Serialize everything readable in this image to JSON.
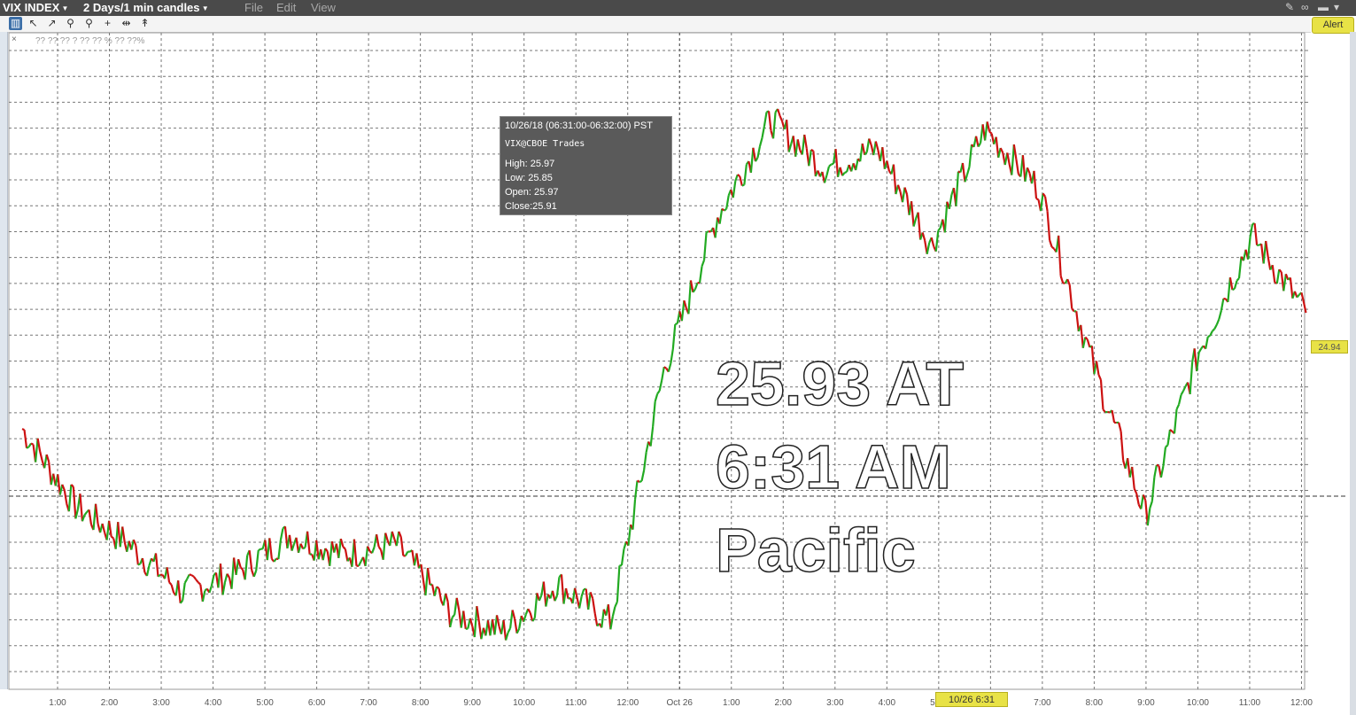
{
  "menu": {
    "symbol": "VIX INDEX",
    "period": "2 Days/1 min candles",
    "file": "File",
    "edit": "Edit",
    "view": "View"
  },
  "toolbar_icons": [
    "chart-type-icon",
    "cursor-icon",
    "draw-icon",
    "zoom-in-icon",
    "zoom-out-icon",
    "crosshair-icon",
    "pan-icon",
    "annotation-icon"
  ],
  "alert_label": "Alert",
  "legend_text": "?? ?? ??   ? ?? ?? % ?? ??%",
  "tooltip": {
    "time": "10/26/18 (06:31:00-06:32:00) PST",
    "series": "VIX@CBOE Trades",
    "high": "High:  25.97",
    "low": "Low:   25.85",
    "open": "Open: 25.97",
    "close": "Close:25.91"
  },
  "overlay": {
    "line1": "25.93 AT",
    "line2": "6:31 AM",
    "line3": "Pacific"
  },
  "x_date_badge": "10/26 6:31",
  "last_price_badge": "24.94",
  "colors": {
    "up": "#22aa22",
    "down": "#cc1111",
    "grid": "#666666",
    "badge": "#e8e246",
    "topbar": "#4a4a4a"
  },
  "chart_data": {
    "type": "line",
    "title": "",
    "instrument": "VIX INDEX",
    "interval": "2 Days/1 min candles",
    "candles_direction_colors": {
      "up": "green",
      "down": "red"
    },
    "x": [
      "1:00",
      "2:00",
      "3:00",
      "4:00",
      "5:00",
      "6:00",
      "7:00",
      "8:00",
      "9:00",
      "10:00",
      "11:00",
      "12:00",
      "Oct 26",
      "1:00",
      "2:00",
      "3:00",
      "4:00",
      "5:00",
      "6:00",
      "7:00",
      "8:00",
      "9:00",
      "10:00",
      "11:00",
      "12:00"
    ],
    "x_ticks": [
      "1:00",
      "2:00",
      "3:00",
      "4:00",
      "5:00",
      "6:00",
      "7:00",
      "8:00",
      "9:00",
      "10:00",
      "11:00",
      "12:00",
      "Oct 26",
      "1:00",
      "2:00",
      "3:00",
      "4:00",
      "5:00",
      "6:00",
      "7:00",
      "8:00",
      "9:00",
      "10:00",
      "11:00",
      "12:00"
    ],
    "series": [
      {
        "values": [
          23.7,
          22.9,
          22.5,
          22.0,
          22.2,
          22.6,
          22.4,
          22.5,
          21.8,
          21.6,
          22.1,
          21.7,
          24.3,
          25.9,
          26.9,
          26.4,
          26.6,
          25.6,
          26.8,
          26.2,
          24.4,
          22.8,
          24.5,
          25.7,
          24.9
        ]
      }
    ],
    "ylim": [
      21.0,
      27.8
    ],
    "hline": 23.0,
    "grid": true
  }
}
